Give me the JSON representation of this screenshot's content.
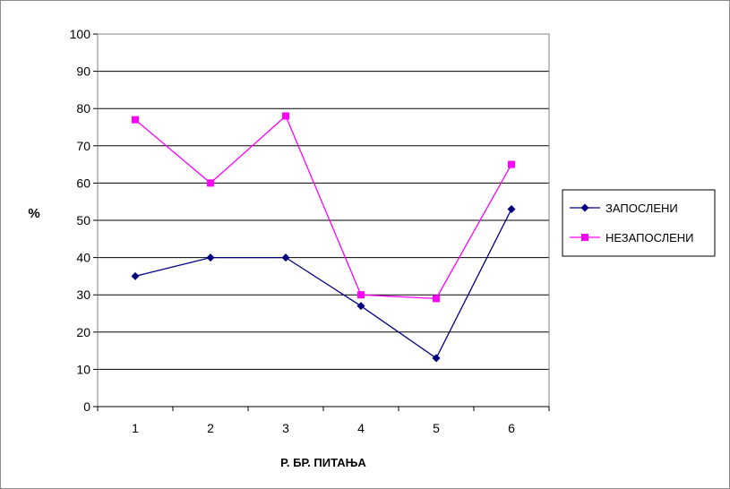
{
  "chart_data": {
    "type": "line",
    "title": "",
    "xlabel": "Р. БР. ПИТАЊА",
    "ylabel": "%",
    "categories": [
      "1",
      "2",
      "3",
      "4",
      "5",
      "6"
    ],
    "ylim": [
      0,
      100
    ],
    "yticks": [
      0,
      10,
      20,
      30,
      40,
      50,
      60,
      70,
      80,
      90,
      100
    ],
    "grid": "horizontal",
    "legend_position": "right",
    "series": [
      {
        "name": "ЗАПОСЛЕНИ",
        "values": [
          35,
          40,
          40,
          27,
          13,
          53
        ],
        "color": "#000080",
        "marker": "diamond"
      },
      {
        "name": "НЕЗАПОСЛЕНИ",
        "values": [
          77,
          60,
          78,
          30,
          29,
          65
        ],
        "color": "#ff00ff",
        "marker": "square"
      }
    ]
  }
}
